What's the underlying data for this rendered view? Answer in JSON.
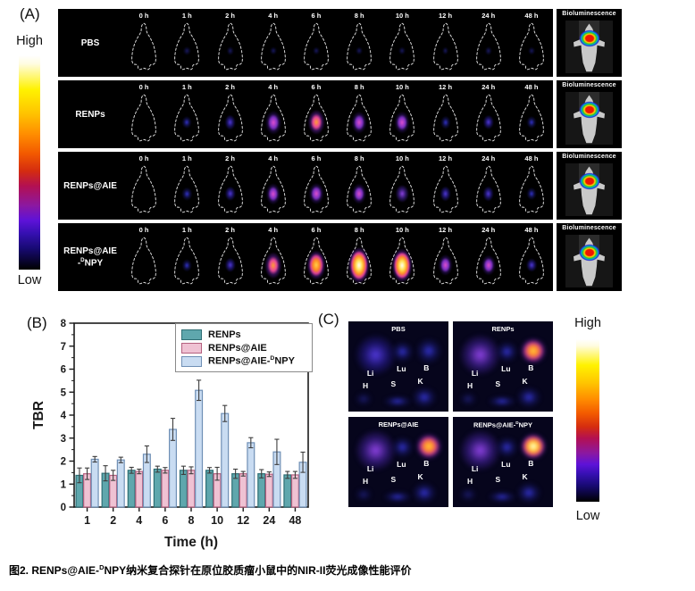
{
  "panel_a": {
    "label": "(A)",
    "colorbar": {
      "high": "High",
      "low": "Low"
    },
    "timepoints": [
      "0 h",
      "1 h",
      "2 h",
      "4 h",
      "6 h",
      "8 h",
      "10 h",
      "12 h",
      "24 h",
      "48 h"
    ],
    "rows": [
      {
        "name": "PBS",
        "line2_pre": "",
        "line2_sup": "",
        "line2_post": "",
        "bioluminescence_label": "Bioluminescence",
        "signal_intensity": [
          0,
          0.8,
          0.8,
          0.5,
          0.5,
          0.5,
          0.5,
          0.5,
          0.8,
          0.4
        ]
      },
      {
        "name": "RENPs",
        "line2_pre": "",
        "line2_sup": "",
        "line2_post": "",
        "bioluminescence_label": "Bioluminescence",
        "signal_intensity": [
          0,
          2.2,
          3.2,
          6.0,
          6.5,
          5.5,
          5.5,
          2.4,
          3.0,
          2.2
        ]
      },
      {
        "name": "RENPs@AIE",
        "line2_pre": "",
        "line2_sup": "",
        "line2_post": "",
        "bioluminescence_label": "Bioluminescence",
        "signal_intensity": [
          0,
          2.4,
          3.0,
          5.2,
          5.4,
          5.0,
          4.2,
          3.2,
          3.2,
          2.2
        ]
      },
      {
        "name": "RENPs@AIE",
        "line2_pre": "-",
        "line2_sup": "D",
        "line2_post": "NPY",
        "bioluminescence_label": "Bioluminescence",
        "signal_intensity": [
          0,
          2.0,
          3.0,
          6.8,
          7.8,
          9.6,
          8.8,
          5.4,
          5.0,
          2.6
        ]
      }
    ]
  },
  "panel_b": {
    "label": "(B)",
    "legend": [
      {
        "pre": "RENPs",
        "sup": "",
        "post": ""
      },
      {
        "pre": "RENPs@AIE",
        "sup": "",
        "post": ""
      },
      {
        "pre": "RENPs@AIE-",
        "sup": "D",
        "post": "NPY"
      }
    ]
  },
  "chart_data": {
    "type": "bar",
    "title": "",
    "xlabel": "Time (h)",
    "ylabel": "TBR",
    "ylim": [
      0,
      8
    ],
    "yticks": [
      0,
      1,
      2,
      3,
      4,
      5,
      6,
      7,
      8
    ],
    "categories": [
      "1",
      "2",
      "4",
      "6",
      "8",
      "10",
      "12",
      "24",
      "48"
    ],
    "grid": false,
    "legend_position": "top-right",
    "series": [
      {
        "name": "RENPs",
        "color": "#5fa7ad",
        "edge": "#2e6e74",
        "values": [
          1.38,
          1.47,
          1.6,
          1.65,
          1.6,
          1.6,
          1.45,
          1.45,
          1.4
        ],
        "errors": [
          0.32,
          0.33,
          0.13,
          0.13,
          0.18,
          0.12,
          0.2,
          0.18,
          0.15
        ]
      },
      {
        "name": "RENPs@AIE",
        "color": "#efc2d3",
        "edge": "#b4607f",
        "values": [
          1.45,
          1.38,
          1.55,
          1.6,
          1.6,
          1.45,
          1.45,
          1.43,
          1.4
        ],
        "errors": [
          0.25,
          0.22,
          0.1,
          0.12,
          0.15,
          0.28,
          0.1,
          0.1,
          0.15
        ]
      },
      {
        "name": "RENPs@AIE-DNPY",
        "color": "#c9dcf2",
        "edge": "#6f8fb5",
        "values": [
          2.08,
          2.05,
          2.3,
          3.38,
          5.08,
          4.07,
          2.8,
          2.4,
          1.95
        ],
        "errors": [
          0.12,
          0.12,
          0.36,
          0.48,
          0.44,
          0.35,
          0.22,
          0.55,
          0.44
        ]
      }
    ]
  },
  "panel_c": {
    "label": "(C)",
    "colorbar": {
      "high": "High",
      "low": "Low"
    },
    "organ_labels": [
      "Li",
      "Lu",
      "B",
      "H",
      "S",
      "K"
    ],
    "quadrants": [
      {
        "title_pre": "PBS",
        "title_sup": "",
        "title_post": "",
        "organ_intensity": {
          "Li": 3.0,
          "Lu": 1.8,
          "B": 1.4,
          "H": 1.0,
          "S": 1.5,
          "K": 1.8
        }
      },
      {
        "title_pre": "RENPs",
        "title_sup": "",
        "title_post": "",
        "organ_intensity": {
          "Li": 4.6,
          "Lu": 2.0,
          "B": 7.5,
          "H": 1.0,
          "S": 1.5,
          "K": 2.4
        }
      },
      {
        "title_pre": "RENPs@AIE",
        "title_sup": "",
        "title_post": "",
        "organ_intensity": {
          "Li": 3.8,
          "Lu": 2.0,
          "B": 7.5,
          "H": 1.0,
          "S": 1.6,
          "K": 2.0
        }
      },
      {
        "title_pre": "RENPs@AIE-",
        "title_sup": "D",
        "title_post": "NPY",
        "organ_intensity": {
          "Li": 4.4,
          "Lu": 2.2,
          "B": 9.5,
          "H": 1.0,
          "S": 2.0,
          "K": 2.4
        }
      }
    ]
  },
  "caption": {
    "pre": "图2. RENPs@AIE-",
    "sup": "D",
    "post": "NPY纳米复合探针在原位胶质瘤小鼠中的NIR-II荧光成像性能评价"
  }
}
